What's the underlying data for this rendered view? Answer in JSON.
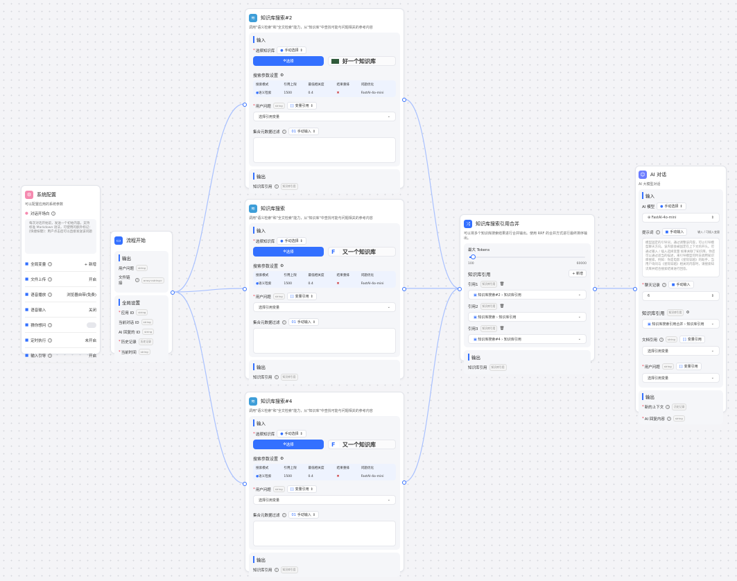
{
  "colors": {
    "accent": "#3370ff",
    "edge": "#a9c1ff"
  },
  "system": {
    "title": "系统配置",
    "desc": "可以配置应用的系统参数",
    "welcome_label": "对话开场白",
    "welcome_text": "每次对话开始前，发送一个初始内容。支持标准 Markdown 语法，可使用的额外标记：[快捷按键]：用户点击后可以直接发送该问题",
    "items": [
      {
        "label": "全局变量",
        "value": "+ 新增",
        "icon": "variable-icon"
      },
      {
        "label": "文件上传",
        "value": "开启",
        "icon": "file-icon"
      },
      {
        "label": "语音播放",
        "value": "浏览器自带(免费)",
        "icon": "voice-icon"
      },
      {
        "label": "语音输入",
        "value": "关闭",
        "icon": "mic-icon"
      },
      {
        "label": "猜你想问",
        "value": "",
        "icon": "bulb-icon"
      },
      {
        "label": "定时执行",
        "value": "未开启",
        "icon": "clock-icon"
      },
      {
        "label": "输入引导",
        "value": "开启",
        "icon": "guide-icon"
      }
    ]
  },
  "start": {
    "title": "流程开始",
    "output_label": "输出",
    "outputs": [
      {
        "label": "用户问题",
        "type": "string"
      },
      {
        "label": "文件链接",
        "type": "array<string>"
      }
    ],
    "global_label": "全局设置",
    "globals": [
      {
        "label": "应用 ID",
        "type": "string",
        "req": true
      },
      {
        "label": "当前对话 ID",
        "type": "string",
        "req": false
      },
      {
        "label": "AI 回复的 ID",
        "type": "string",
        "req": false
      },
      {
        "label": "历史记录",
        "type": "历史记录",
        "req": true
      },
      {
        "label": "当前时间",
        "type": "string",
        "req": true
      }
    ]
  },
  "kb_nodes": [
    {
      "title": "知识库搜索#2",
      "kb_name": "好一个知识库"
    },
    {
      "title": "知识库搜索",
      "kb_name": "又一个知识库"
    },
    {
      "title": "知识库搜索#4",
      "kb_name": "又一个知识库"
    }
  ],
  "kb_common": {
    "desc": "调用\"语义检索\"和\"全文检索\"能力，从\"知识库\"中查找可能与问题相关的参考内容",
    "input": "输入",
    "select_kb": "选择知识库",
    "manual_select": "手动选择",
    "select_btn": "选择",
    "params": "搜索参数设置",
    "cols": [
      "搜索模式",
      "引用上限",
      "最低相关度",
      "结果重排",
      "问题优化"
    ],
    "vals": [
      "语义检索",
      "1500",
      "0.4",
      "✖",
      "FastAI-4o-mini"
    ],
    "user_q": "用户问题",
    "string": "string",
    "var_ref": "变量引用",
    "pick_var": "选择引用变量",
    "meta_filter": "集合元数据过滤",
    "manual_input": "手动输入",
    "output": "输出",
    "kb_ref": "知识库引用",
    "kb_ref_type": "知识库引用"
  },
  "merge": {
    "title": "知识库搜索引用合并",
    "desc": "可以将多个知识库搜索结果进行合并输出。使用 RRF 的合并方式进行最终排序输出。",
    "max_tokens": "最大 Tokens",
    "min": "100",
    "max": "60000",
    "slider_value": 0.03,
    "kb_ref": "知识库引用",
    "add": "+ 新增",
    "refs": [
      {
        "label": "引用1",
        "src": "知识库搜索#2",
        "field": "知识库引用"
      },
      {
        "label": "引用2",
        "src": "知识库搜索",
        "field": "知识库引用"
      },
      {
        "label": "引用3",
        "src": "知识库搜索#4",
        "field": "知识库引用"
      }
    ],
    "tag": "知识库引用",
    "output": "输出",
    "out_label": "知识库引用"
  },
  "ai": {
    "title": "AI 对话",
    "desc": "AI 大模型对话",
    "input": "输入",
    "model_label": "AI 模型",
    "manual_select": "手动选择",
    "model": "FastAI-4o-mini",
    "prompt_label": "提示词",
    "manual_input": "手动输入",
    "insert": "输入 / 可插入变量",
    "prompt_text": "模型固定的引导词，通过调整该内容，可以引导模型聊天方向。该内容会被固定在上下文的开头。可通过输入 / 插入选择变量 如果关联了知识库，你还可以通过适当的描述，来引导模型何时去调用知识库搜索。例如：你是电影《星际穿越》的助手，当用户询问与《星际穿越》相关的内容时，请搜索知识库并结合搜索结果进行回答。",
    "history_label": "聊天记录",
    "history_value": "6",
    "kb_label": "知识库引用",
    "kb_tag": "知识库引用",
    "kb_src": "知识库搜索引用合并",
    "kb_field": "知识库引用",
    "doc_label": "文档引用",
    "string": "string",
    "var_ref": "变量引用",
    "pick_var": "选择引用变量",
    "user_q": "用户问题",
    "output": "输出",
    "out1": "新的上下文",
    "out1_type": "历史记录",
    "out2": "AI 回复内容",
    "out2_type": "string"
  }
}
